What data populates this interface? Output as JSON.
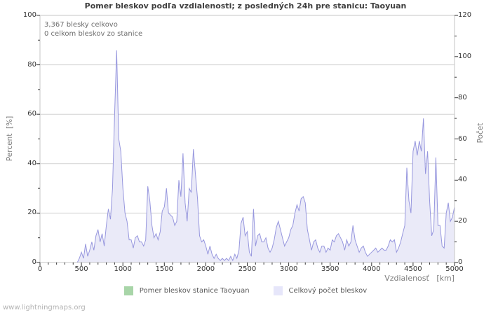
{
  "chart_data": {
    "type": "area",
    "title": "Pomer bleskov podľa vzdialenosti; z posledných 24h pre stanicu: Taoyuan",
    "annotations": [
      "3,367 blesky celkovo",
      "0 celkom bleskov zo stanice"
    ],
    "xlabel": "Vzdialenosť   [km]",
    "ylabel_left": "Percent  [%]",
    "ylabel_right": "Počet",
    "xlim": [
      0,
      5000
    ],
    "ylim_left": [
      0,
      100
    ],
    "ylim_right": [
      0,
      120
    ],
    "x_tick_step": 500,
    "x_minor_step": 100,
    "y_left_tick_step": 20,
    "y_left_minor_step": 10,
    "y_right_tick_step": 20,
    "y_right_minor_step": 10,
    "grid": "horizontal",
    "legend_position": "bottom-center",
    "x_start": 0,
    "x_step": 25,
    "series": [
      {
        "name": "Pomer bleskov stanice Taoyuan",
        "axis": "left",
        "swatch_color": "#a8d5a8",
        "constant_value": 0
      },
      {
        "name": "Celkový počet bleskov",
        "axis": "right",
        "swatch_color": "#e6e6fa",
        "fill_color": "#eaeaf8",
        "line_color": "#9797de",
        "values": [
          0,
          0,
          0,
          0,
          0,
          0,
          0,
          0,
          0,
          0,
          0,
          0,
          0,
          0,
          0,
          0,
          0,
          0,
          0,
          2,
          5,
          2,
          9,
          3,
          6,
          10,
          6,
          13,
          16,
          10,
          14,
          8,
          18,
          26,
          21,
          36,
          72,
          103,
          60,
          54,
          36,
          24,
          20,
          11,
          11,
          7,
          12,
          13,
          10,
          10,
          8,
          11,
          37,
          30,
          18,
          12,
          14,
          11,
          15,
          25,
          27,
          36,
          24,
          23,
          22,
          18,
          20,
          40,
          32,
          53,
          29,
          20,
          36,
          34,
          55,
          43,
          31,
          13,
          10,
          11,
          8,
          4,
          8,
          4,
          2,
          4,
          2,
          1,
          2,
          1,
          2,
          1,
          3,
          1,
          4,
          2,
          6,
          19,
          22,
          13,
          15,
          5,
          3,
          26,
          8,
          13,
          14,
          10,
          10,
          12,
          7,
          5,
          7,
          11,
          17,
          20,
          16,
          12,
          8,
          10,
          12,
          16,
          18,
          24,
          28,
          25,
          31,
          32,
          29,
          16,
          11,
          6,
          10,
          11,
          7,
          5,
          8,
          8,
          5,
          7,
          6,
          11,
          10,
          13,
          14,
          12,
          10,
          6,
          11,
          8,
          10,
          18,
          11,
          8,
          5,
          7,
          8,
          5,
          3,
          4,
          5,
          6,
          7,
          5,
          6,
          7,
          6,
          6,
          8,
          11,
          10,
          11,
          5,
          7,
          10,
          14,
          18,
          46,
          30,
          24,
          54,
          59,
          52,
          59,
          54,
          70,
          43,
          54,
          30,
          13,
          16,
          51,
          18,
          18,
          8,
          7,
          24,
          29,
          20,
          22,
          27
        ]
      }
    ]
  },
  "colors": {
    "grid": "#d2d2d2",
    "border": "#c6c6c6",
    "tick": "#333333"
  },
  "watermark": "www.lightningmaps.org"
}
